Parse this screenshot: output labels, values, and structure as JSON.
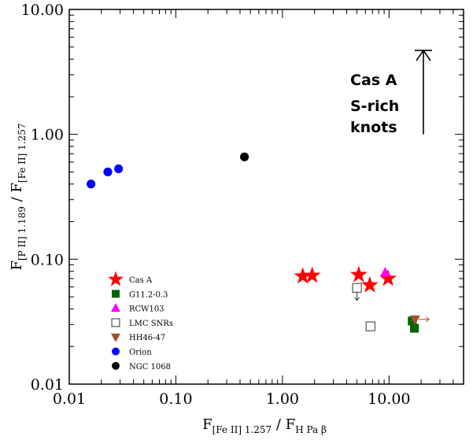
{
  "chart_data": {
    "type": "scatter",
    "title": "",
    "xlabel": {
      "main1": "F",
      "sub1": "[Fe II] 1.257",
      "mid": " / F",
      "sub2": "H Pa β"
    },
    "ylabel": {
      "main1": "F",
      "sub1": "[P II] 1.189",
      "mid": " / F",
      "sub2": "[Fe II] 1.257"
    },
    "xscale": "log",
    "yscale": "log",
    "xlim": [
      0.01,
      50
    ],
    "ylim": [
      0.01,
      10
    ],
    "x_ticks": [
      {
        "value": 0.01,
        "label": "0.01"
      },
      {
        "value": 0.1,
        "label": "0.10"
      },
      {
        "value": 1,
        "label": "1.00"
      },
      {
        "value": 10,
        "label": "10.00"
      }
    ],
    "y_ticks": [
      {
        "value": 0.01,
        "label": "0.01"
      },
      {
        "value": 0.1,
        "label": "0.10"
      },
      {
        "value": 1,
        "label": "1.00"
      },
      {
        "value": 10,
        "label": "10.00"
      }
    ],
    "legend_position": "lower-left",
    "series": [
      {
        "name": "Cas A",
        "marker": "star",
        "color": "#ff0000",
        "points": [
          [
            1.55,
            0.073
          ],
          [
            1.9,
            0.074
          ],
          [
            5.2,
            0.075
          ],
          [
            6.6,
            0.062
          ],
          [
            9.8,
            0.07
          ]
        ]
      },
      {
        "name": "G11.2-0.3",
        "marker": "square-filled",
        "color": "#006400",
        "points": [
          [
            16.5,
            0.032
          ],
          [
            17.3,
            0.028
          ]
        ]
      },
      {
        "name": "RCW103",
        "marker": "triangle-up",
        "color": "#ff00ff",
        "points": [
          [
            9.2,
            0.078
          ]
        ]
      },
      {
        "name": "LMC SNRs",
        "marker": "square-open",
        "color": "#333333",
        "points": [
          [
            5.0,
            0.059
          ],
          [
            6.7,
            0.029
          ]
        ],
        "upper_limits": [
          [
            5.0,
            0.059
          ]
        ]
      },
      {
        "name": "HH46-47",
        "marker": "triangle-down",
        "color": "#a0522d",
        "points": [
          [
            17.5,
            0.033
          ]
        ],
        "right_limits": [
          [
            17.5,
            0.033
          ]
        ]
      },
      {
        "name": "Orion",
        "marker": "circle",
        "color": "#0000ff",
        "points": [
          [
            0.016,
            0.4
          ],
          [
            0.023,
            0.5
          ],
          [
            0.029,
            0.53
          ]
        ]
      },
      {
        "name": "NGC 1068",
        "marker": "circle",
        "color": "#000000",
        "points": [
          [
            0.44,
            0.66
          ]
        ]
      }
    ],
    "annotation": {
      "lines": [
        "Cas A",
        "S-rich",
        "knots"
      ],
      "arrow_x": 21,
      "arrow_y_from": 1.0,
      "arrow_y_to": 4.7
    }
  }
}
